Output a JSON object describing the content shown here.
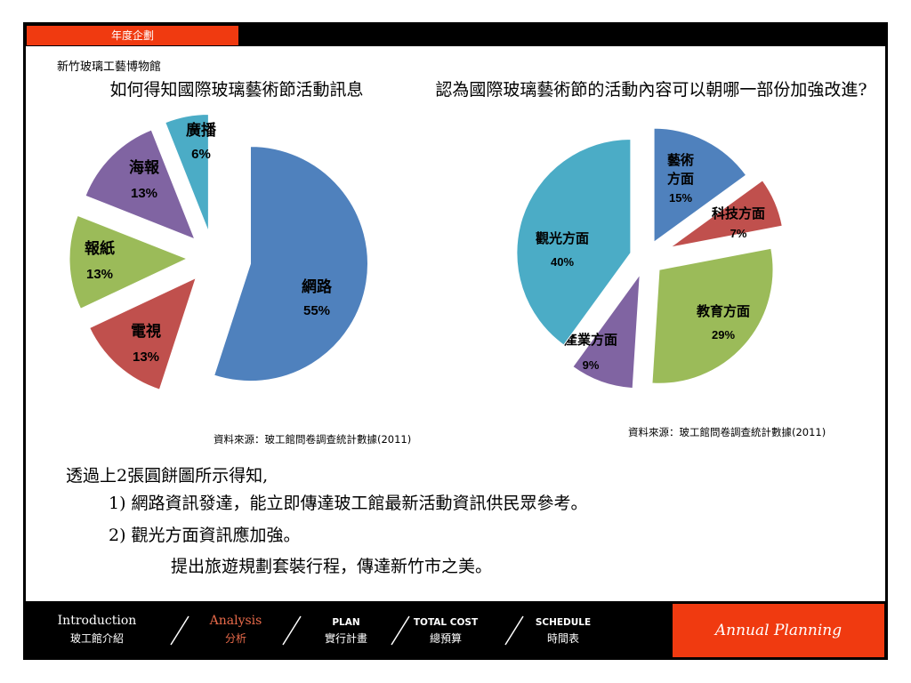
{
  "header": {
    "tab_label": "年度企劃"
  },
  "org_name": "新竹玻璃工藝博物館",
  "chart_data": [
    {
      "type": "pie",
      "title": "如何得知國際玻璃藝術節活動訊息",
      "categories": [
        "網路",
        "電視",
        "報紙",
        "海報",
        "廣播"
      ],
      "values": [
        55,
        13,
        13,
        13,
        6
      ],
      "value_labels": [
        "55%",
        "13%",
        "13%",
        "13%",
        "6%"
      ],
      "colors": [
        "#4f81bd",
        "#c0504d",
        "#9bbb59",
        "#8064a2",
        "#4bacc6"
      ],
      "exploded": true,
      "source": "資料來源：玻工館問卷調查統計數據(2011)"
    },
    {
      "type": "pie",
      "title": "認為國際玻璃藝術節的活動內容可以朝哪一部份加強改進?",
      "categories": [
        "藝術方面",
        "科技方面",
        "教育方面",
        "產業方面",
        "觀光方面"
      ],
      "values": [
        15,
        7,
        29,
        9,
        40
      ],
      "value_labels": [
        "15%",
        "7%",
        "29%",
        "9%",
        "40%"
      ],
      "colors": [
        "#4f81bd",
        "#c0504d",
        "#9bbb59",
        "#8064a2",
        "#4bacc6"
      ],
      "exploded": true,
      "source": "資料來源：玻工館問卷調查統計數據(2011)"
    }
  ],
  "conclusion": {
    "line1": "透過上2張圓餅圖所示得知,",
    "line2": "1) 網路資訊發達，能立即傳達玻工館最新活動資訊供民眾參考。",
    "line3": "2) 觀光方面資訊應加強。",
    "line4": "提出旅遊規劃套裝行程，傳達新竹市之美。"
  },
  "nav": {
    "items": [
      {
        "en": "Introduction",
        "zh": "玻工館介紹"
      },
      {
        "en": "Analysis",
        "zh": "分析"
      },
      {
        "en": "PLAN",
        "zh": "實行計畫"
      },
      {
        "en": "TOTAL COST",
        "zh": "總預算"
      },
      {
        "en": "SCHEDULE",
        "zh": "時間表"
      }
    ],
    "brand": "Annual Planning"
  }
}
